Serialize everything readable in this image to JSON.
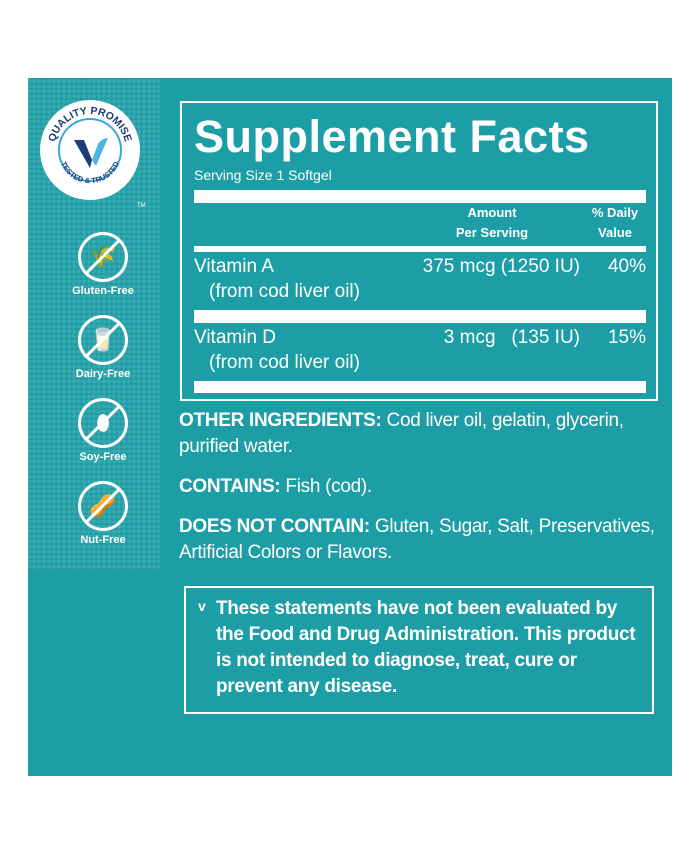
{
  "badge": {
    "text_top": "QUALITY PROMISE",
    "text_bottom": "TESTED & TRUSTED",
    "tm": "TM",
    "colors": {
      "dark": "#1f3a78",
      "light": "#4fb3e6"
    }
  },
  "free_icons": [
    {
      "label": "Gluten-Free",
      "icon": "wheat-icon",
      "glyph": "🌾"
    },
    {
      "label": "Dairy-Free",
      "icon": "milk-bottle-icon",
      "glyph": "🥛"
    },
    {
      "label": "Soy-Free",
      "icon": "soybean-icon",
      "glyph": "⬮"
    },
    {
      "label": "Nut-Free",
      "icon": "peanut-icon",
      "glyph": "🥜"
    }
  ],
  "facts": {
    "title": "Supplement Facts",
    "serving": "Serving Size 1 Softgel",
    "col_amount_1": "Amount",
    "col_amount_2": "Per Serving",
    "col_dv_1": "% Daily",
    "col_dv_2": "Value",
    "rows": [
      {
        "name": "Vitamin A",
        "source": "(from cod liver oil)",
        "amount": "375 mcg (1250 IU)",
        "dv": "40%"
      },
      {
        "name": "Vitamin D",
        "source": "(from cod liver oil)",
        "amount": "3 mcg   (135 IU)",
        "dv": "15%"
      }
    ]
  },
  "other_ingredients": {
    "label": "OTHER INGREDIENTS:",
    "value": " Cod liver oil, gelatin, glycerin, purified water."
  },
  "contains": {
    "label": "CONTAINS:",
    "value": " Fish (cod)."
  },
  "does_not_contain": {
    "label": "DOES NOT CONTAIN:",
    "value": " Gluten, Sugar, Salt, Preservatives, Artificial Colors or Flavors."
  },
  "disclaimer": {
    "marker": "v",
    "text": "These statements have not been evaluated by the Food and Drug Administration. This product is not intended to diagnose, treat, cure or prevent any disease."
  },
  "colors": {
    "teal": "#1d9ea6",
    "white": "#ffffff"
  }
}
